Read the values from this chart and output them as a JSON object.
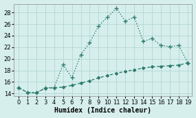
{
  "x": [
    0,
    1,
    2,
    3,
    4,
    5,
    6,
    7,
    8,
    9,
    10,
    11,
    12,
    13,
    14,
    15,
    16,
    17,
    18,
    19
  ],
  "upper_y": [
    15.0,
    14.2,
    14.1,
    15.0,
    15.0,
    19.0,
    16.7,
    20.7,
    22.8,
    25.7,
    27.2,
    28.7,
    26.5,
    27.2,
    23.0,
    23.5,
    22.3,
    22.1,
    22.3,
    19.3
  ],
  "lower_y": [
    15.0,
    14.2,
    14.1,
    14.9,
    15.0,
    15.1,
    15.4,
    15.8,
    16.2,
    16.7,
    17.1,
    17.5,
    17.8,
    18.1,
    18.4,
    18.6,
    18.7,
    18.8,
    18.9,
    19.3
  ],
  "line_color": "#2e7d6e",
  "bg_color": "#d6efec",
  "grid_color": "#b8d9d4",
  "xlabel": "Humidex (Indice chaleur)",
  "ylim": [
    13.5,
    29.5
  ],
  "xlim": [
    -0.5,
    19.5
  ],
  "yticks": [
    14,
    16,
    18,
    20,
    22,
    24,
    26,
    28
  ],
  "xticks": [
    0,
    1,
    2,
    3,
    4,
    5,
    6,
    7,
    8,
    9,
    10,
    11,
    12,
    13,
    14,
    15,
    16,
    17,
    18,
    19
  ],
  "label_fontsize": 7,
  "tick_fontsize": 6,
  "marker_upper": "+",
  "marker_lower": "D",
  "marker_size_upper": 4,
  "marker_size_lower": 2,
  "line_width": 1.0
}
